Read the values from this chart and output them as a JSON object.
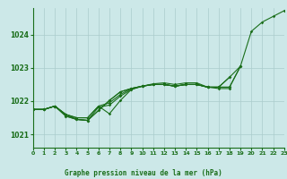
{
  "title": "Graphe pression niveau de la mer (hPa)",
  "bg_color": "#cce8e8",
  "grid_color": "#aacccc",
  "line_color": "#1a6e1a",
  "x_min": 0,
  "x_max": 23,
  "y_min": 1020.6,
  "y_max": 1024.8,
  "yticks": [
    1021,
    1022,
    1023,
    1024
  ],
  "xticks": [
    0,
    1,
    2,
    3,
    4,
    5,
    6,
    7,
    8,
    9,
    10,
    11,
    12,
    13,
    14,
    15,
    16,
    17,
    18,
    19,
    20,
    21,
    22,
    23
  ],
  "series": [
    [
      1021.75,
      1021.75,
      1021.85,
      1021.6,
      1021.5,
      1021.5,
      1021.85,
      1021.95,
      1022.2,
      1022.38,
      1022.45,
      1022.5,
      1022.5,
      1022.45,
      1022.5,
      1022.5,
      1022.42,
      1022.42,
      1022.42,
      1023.05,
      1024.1,
      1024.38,
      1024.55,
      1024.72
    ],
    [
      1021.75,
      1021.75,
      1021.85,
      1021.55,
      1021.45,
      1021.42,
      1021.72,
      1022.02,
      1022.28,
      1022.38,
      1022.45,
      1022.5,
      1022.5,
      1022.45,
      1022.5,
      1022.5,
      1022.42,
      1022.42,
      1022.72,
      1023.05,
      null,
      null,
      null,
      null
    ],
    [
      1021.75,
      1021.75,
      1021.85,
      1021.6,
      1021.45,
      1021.42,
      1021.82,
      1021.88,
      1022.15,
      1022.35,
      1022.45,
      1022.52,
      1022.55,
      1022.5,
      1022.55,
      1022.55,
      1022.42,
      1022.42,
      1022.42,
      1023.05,
      null,
      null,
      null,
      null
    ],
    [
      1021.75,
      1021.75,
      1021.85,
      1021.6,
      1021.5,
      1021.5,
      1021.85,
      1021.62,
      1022.02,
      1022.35,
      1022.45,
      1022.5,
      1022.5,
      1022.45,
      1022.5,
      1022.5,
      1022.42,
      1022.38,
      1022.38,
      null,
      null,
      null,
      null,
      null
    ],
    [
      1021.75,
      1021.75,
      1021.85,
      1021.55,
      1021.45,
      1021.42,
      1021.72,
      1022.02,
      1022.28,
      1022.38,
      1022.45,
      1022.5,
      1022.5,
      1022.45,
      1022.5,
      1022.5,
      1022.42,
      1022.42,
      1022.72,
      null,
      null,
      null,
      null,
      null
    ]
  ]
}
